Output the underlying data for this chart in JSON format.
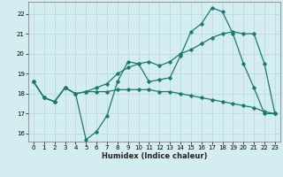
{
  "x": [
    0,
    1,
    2,
    3,
    4,
    5,
    6,
    7,
    8,
    9,
    10,
    11,
    12,
    13,
    14,
    15,
    16,
    17,
    18,
    19,
    20,
    21,
    22,
    23
  ],
  "line1": [
    18.6,
    17.8,
    17.6,
    18.3,
    18.0,
    15.7,
    16.1,
    16.9,
    18.6,
    19.6,
    19.5,
    18.6,
    18.7,
    18.8,
    19.9,
    21.1,
    21.5,
    22.3,
    22.1,
    21.0,
    19.5,
    18.3,
    17.0,
    17.0
  ],
  "line2": [
    18.6,
    17.8,
    17.6,
    18.3,
    18.0,
    18.1,
    18.3,
    18.5,
    19.0,
    19.3,
    19.5,
    19.6,
    19.4,
    19.6,
    20.0,
    20.2,
    20.5,
    20.8,
    21.0,
    21.1,
    21.0,
    21.0,
    19.5,
    17.0
  ],
  "line3": [
    18.6,
    17.8,
    17.6,
    18.3,
    18.0,
    18.1,
    18.1,
    18.1,
    18.2,
    18.2,
    18.2,
    18.2,
    18.1,
    18.1,
    18.0,
    17.9,
    17.8,
    17.7,
    17.6,
    17.5,
    17.4,
    17.3,
    17.1,
    17.0
  ],
  "color": "#1a7a6e",
  "bg_color": "#d4edf0",
  "grid_color": "#b8d8dc",
  "xlabel": "Humidex (Indice chaleur)",
  "xlim_min": -0.5,
  "xlim_max": 23.5,
  "ylim_min": 15.6,
  "ylim_max": 22.6,
  "yticks": [
    16,
    17,
    18,
    19,
    20,
    21,
    22
  ],
  "xticks": [
    0,
    1,
    2,
    3,
    4,
    5,
    6,
    7,
    8,
    9,
    10,
    11,
    12,
    13,
    14,
    15,
    16,
    17,
    18,
    19,
    20,
    21,
    22,
    23
  ],
  "tick_fontsize": 5,
  "xlabel_fontsize": 6
}
